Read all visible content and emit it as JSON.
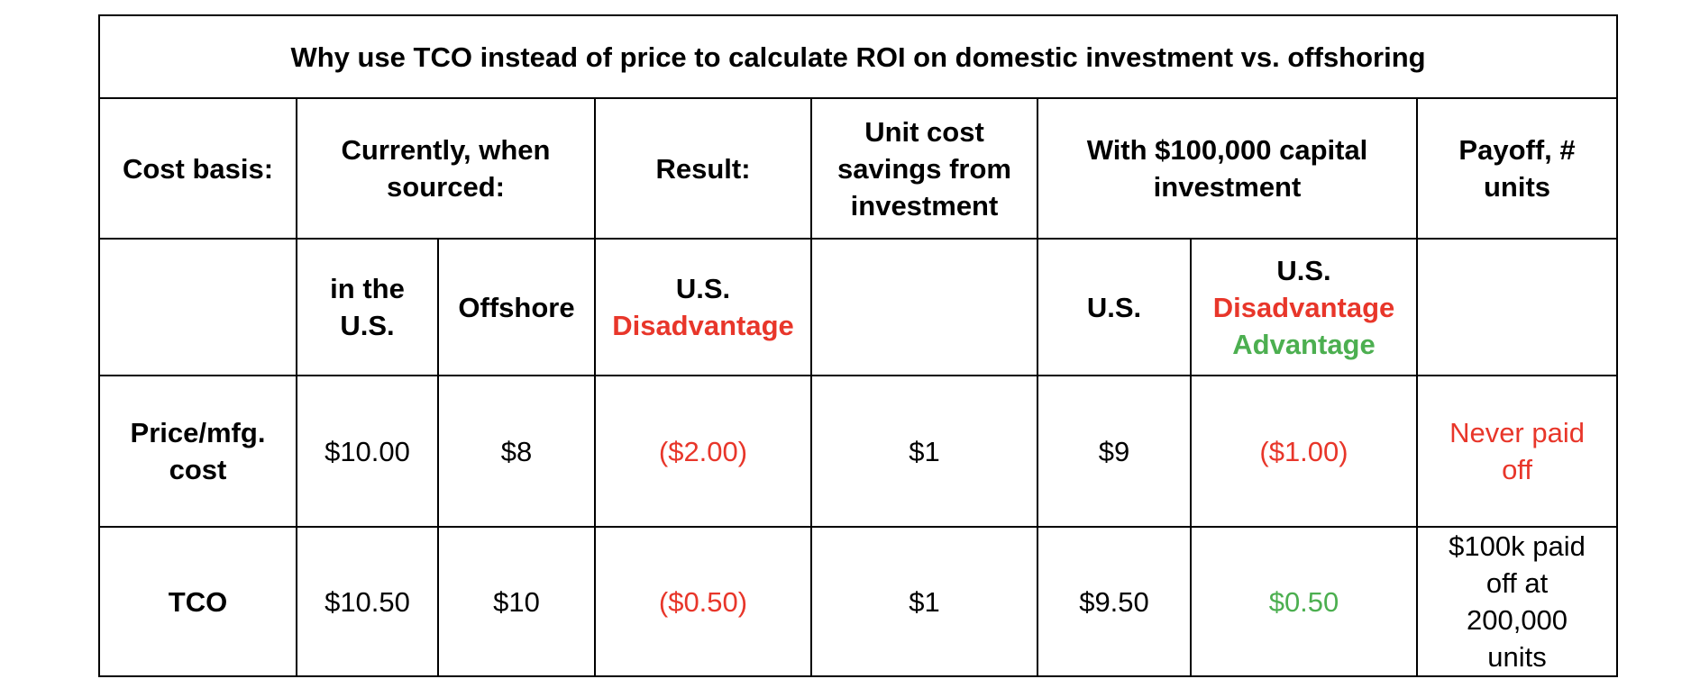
{
  "title": "Why use TCO instead of price to calculate ROI on domestic investment vs. offshoring",
  "headers": {
    "cost_basis": "Cost basis:",
    "currently_sourced_1": "Currently, when",
    "currently_sourced_2": "sourced:",
    "result": "Result:",
    "unit_cost_1": "Unit cost",
    "unit_cost_2": "savings from",
    "unit_cost_3": "investment",
    "with_capital_1": "With $100,000 capital",
    "with_capital_2": "investment",
    "payoff_1": "Payoff, #",
    "payoff_2": "units"
  },
  "subheaders": {
    "in_us_1": "in the",
    "in_us_2": "U.S.",
    "offshore": "Offshore",
    "result_us": "U.S.",
    "result_disadvantage": "Disadvantage",
    "invest_us": "U.S.",
    "adv_us": "U.S.",
    "adv_disadvantage": "Disadvantage",
    "adv_advantage": "Advantage"
  },
  "rows": [
    {
      "label_1": "Price/mfg.",
      "label_2": "cost",
      "in_us": "$10.00",
      "offshore": "$8",
      "result": "($2.00)",
      "unit_savings": "$1",
      "invest_us": "$9",
      "adv": "($1.00)",
      "payoff_1": "Never paid",
      "payoff_2": "off"
    },
    {
      "label_1": "TCO",
      "in_us": "$10.50",
      "offshore": "$10",
      "result": "($0.50)",
      "unit_savings": "$1",
      "invest_us": "$9.50",
      "adv": "$0.50",
      "payoff_1": "$100k paid",
      "payoff_2": "off at",
      "payoff_3": "200,000",
      "payoff_4": "units"
    }
  ],
  "colors": {
    "negative": "#e8362a",
    "positive": "#4caf50",
    "text": "#000000",
    "border": "#000000"
  }
}
